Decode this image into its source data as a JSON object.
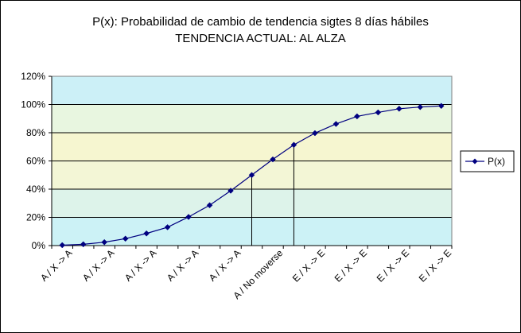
{
  "chart_data": {
    "type": "line",
    "title": "P(x): Probabilidad de cambio de tendencia sigtes 8 días hábiles",
    "subtitle": "TENDENCIA ACTUAL: AL ALZA",
    "xlabel": "",
    "ylabel": "",
    "ylim": [
      0,
      1.2
    ],
    "yticks": [
      "0%",
      "20%",
      "40%",
      "60%",
      "80%",
      "100%",
      "120%"
    ],
    "x_tick_labels": [
      "A / X -> A",
      "A / X -> A",
      "A / X -> A",
      "A / X -> A",
      "A / X -> A",
      "A / No moverse",
      "E / X -> E",
      "E / X -> E",
      "E / X -> E",
      "E / X -> E"
    ],
    "series": [
      {
        "name": "P(x)",
        "color": "#000080",
        "values": [
          0.003,
          0.009,
          0.024,
          0.049,
          0.086,
          0.13,
          0.203,
          0.286,
          0.389,
          0.5,
          0.611,
          0.714,
          0.797,
          0.862,
          0.916,
          0.944,
          0.97,
          0.982,
          0.99
        ]
      }
    ],
    "reference_lines_at_points": [
      9,
      11
    ],
    "background_bands": [
      {
        "from": 0.0,
        "to": 0.2,
        "color": "#ccf2f6"
      },
      {
        "from": 0.2,
        "to": 0.4,
        "color": "#ddf3ea"
      },
      {
        "from": 0.4,
        "to": 0.6,
        "color": "#f3f6d6"
      },
      {
        "from": 0.6,
        "to": 0.8,
        "color": "#f6f6d0"
      },
      {
        "from": 0.8,
        "to": 1.0,
        "color": "#e8f6e0"
      },
      {
        "from": 1.0,
        "to": 1.2,
        "color": "#ccf0f7"
      }
    ],
    "grid": true,
    "legend": "right"
  }
}
